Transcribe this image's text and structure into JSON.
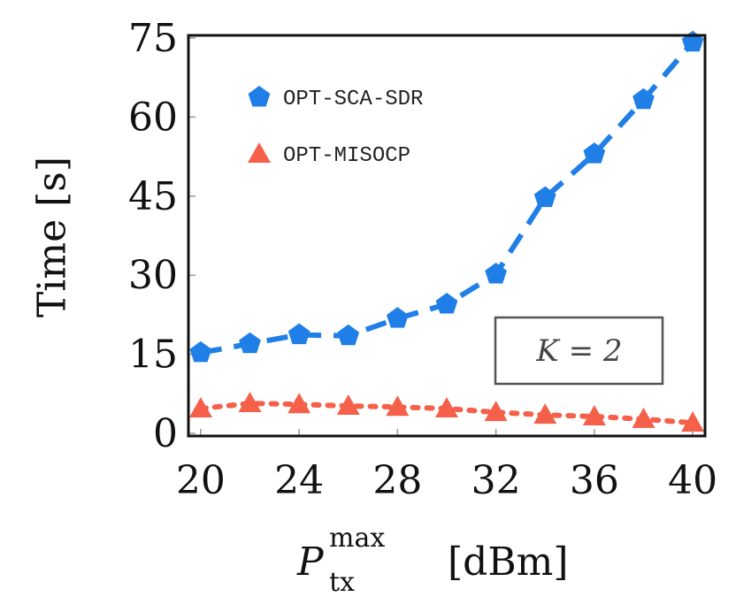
{
  "chart_data": {
    "type": "line",
    "ylabel": "Time [s]",
    "xlabel": {
      "base": "P",
      "sup": "max",
      "sub": "tx",
      "unit": "[dBm]"
    },
    "annotation": "K = 2",
    "x": [
      20,
      22,
      24,
      26,
      28,
      30,
      32,
      34,
      36,
      38,
      40
    ],
    "series": [
      {
        "name": "OPT-SCA-SDR",
        "color": "#1f7fe6",
        "marker": "pentagon",
        "linestyle": "dashed",
        "values": [
          15.3,
          17,
          18.7,
          18.5,
          21.8,
          24.5,
          30.2,
          44.7,
          53,
          63.3,
          74.2
        ]
      },
      {
        "name": "OPT-MISOCP",
        "color": "#f5604a",
        "marker": "triangle",
        "linestyle": "dotted",
        "values": [
          4.7,
          5.7,
          5.5,
          5.2,
          5,
          4.7,
          4,
          3.5,
          3.2,
          2.7,
          2
        ]
      }
    ],
    "xlim": [
      19.5,
      40.5
    ],
    "xticks": [
      20,
      24,
      28,
      32,
      36,
      40
    ],
    "ylim": [
      -0.5,
      75.5
    ],
    "yticks": [
      0,
      15,
      30,
      45,
      60,
      75
    ],
    "legend": "upper left",
    "grid": false
  }
}
